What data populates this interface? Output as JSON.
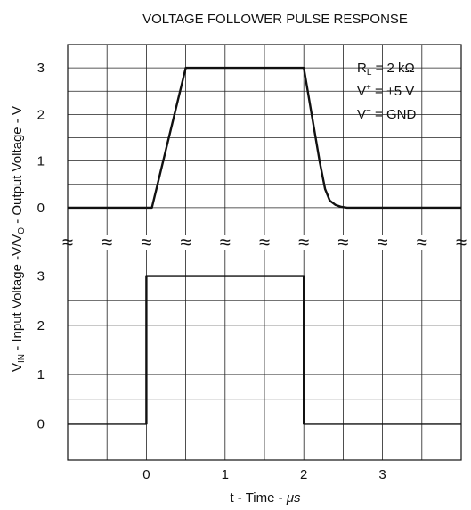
{
  "chart_data": {
    "type": "line",
    "title": "VOLTAGE FOLLOWER PULSE RESPONSE",
    "xlabel": {
      "text": "t - Time - ",
      "unit": "μs"
    },
    "ylabel": {
      "vin_pre": "V",
      "vin_sub": "IN",
      "mid": " - Input Voltage -V/V",
      "vo_sub": "O",
      "post": " - Output Voltage - V"
    },
    "x_ticks": [
      "0",
      "1",
      "2",
      "3"
    ],
    "x_tick_values": [
      0,
      1,
      2,
      3
    ],
    "xlim": [
      -1,
      4
    ],
    "grid": true,
    "break_symbol": "≈",
    "annotation": {
      "rl": {
        "pre": "R",
        "sub": "L",
        "post": " = 2 kΩ"
      },
      "vplus": {
        "pre": "V",
        "sup": "+",
        "post": " = +5 V"
      },
      "vminus": {
        "pre": "V",
        "sup": "−",
        "post": " = GND"
      }
    },
    "panels": [
      {
        "role": "output",
        "y_ticks": [
          "0",
          "1",
          "2",
          "3"
        ],
        "y_tick_values": [
          0,
          1,
          2,
          3
        ],
        "ylim": [
          -0.5,
          3.5
        ],
        "series": [
          {
            "x": [
              -1,
              0.07,
              0.5,
              2.0,
              2.2,
              2.27,
              2.33,
              2.4,
              2.47,
              2.55,
              4.0
            ],
            "y": [
              0,
              0,
              3,
              3,
              1.0,
              0.4,
              0.15,
              0.06,
              0.02,
              0,
              0
            ]
          }
        ]
      },
      {
        "role": "input",
        "y_ticks": [
          "0",
          "1",
          "2",
          "3"
        ],
        "y_tick_values": [
          0,
          1,
          2,
          3
        ],
        "ylim": [
          -0.5,
          3.5
        ],
        "series": [
          {
            "x": [
              -1,
              0,
              0,
              2,
              2,
              4
            ],
            "y": [
              0,
              0,
              3,
              3,
              0,
              0
            ]
          }
        ]
      }
    ]
  }
}
